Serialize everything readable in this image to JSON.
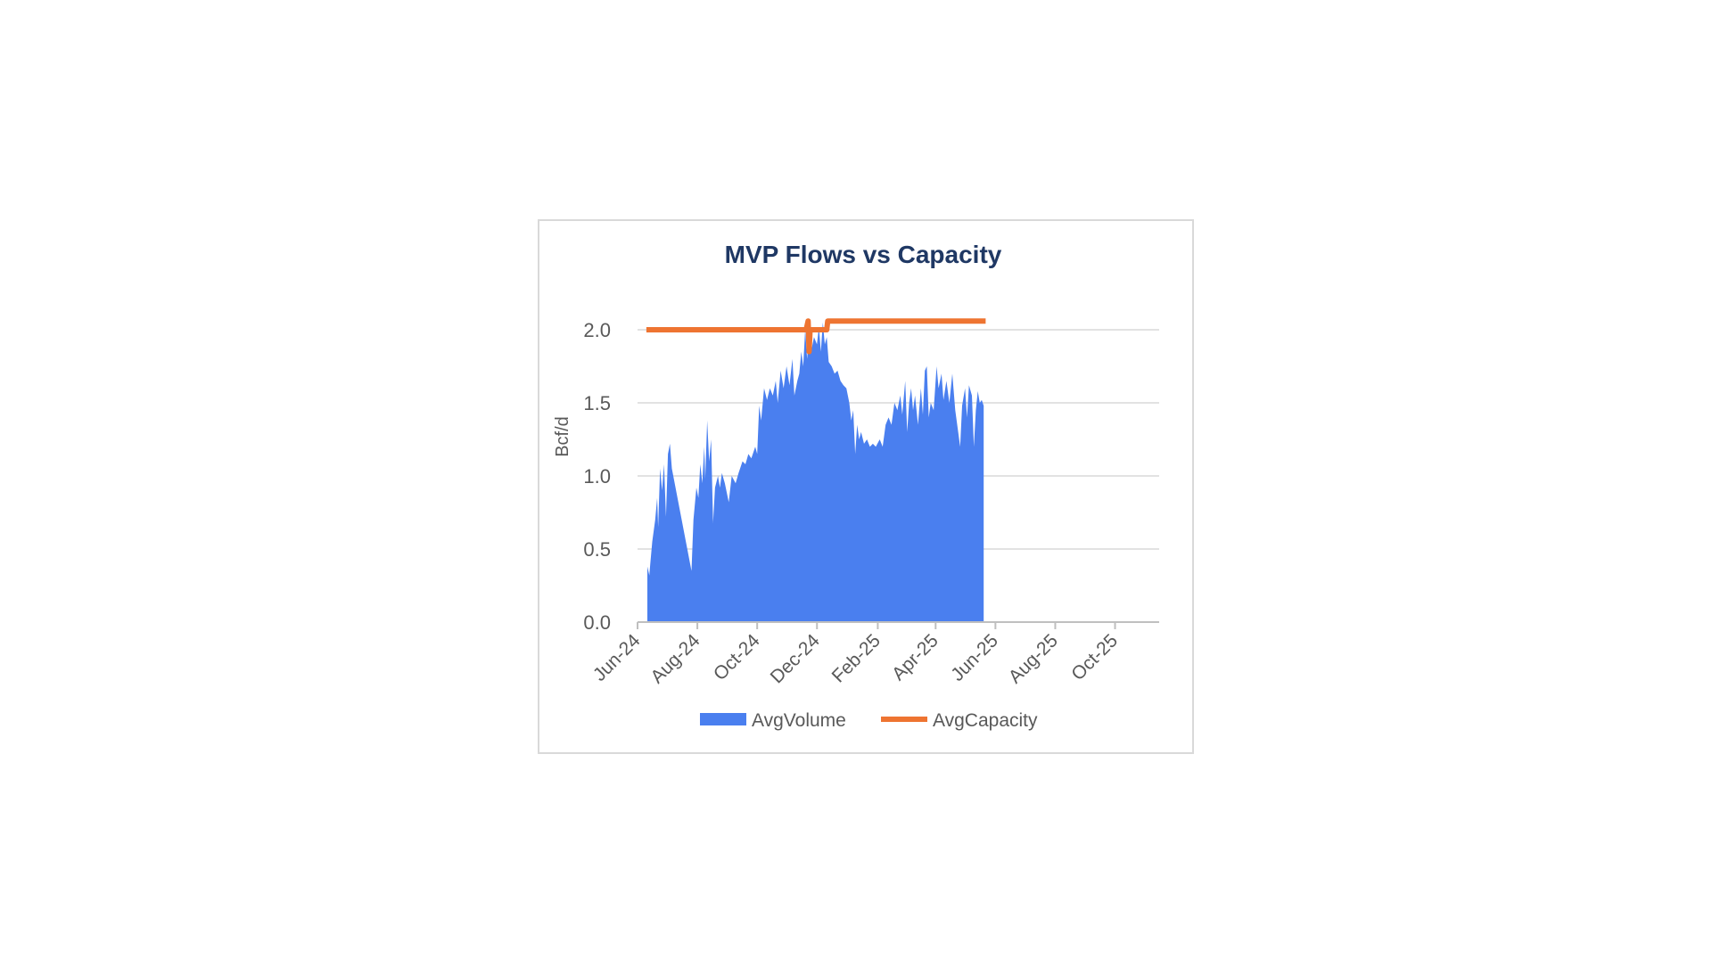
{
  "chart_data": {
    "type": "area",
    "title": "MVP Flows vs Capacity",
    "ylabel": "Bcf/d",
    "xlabel": "",
    "ylim": [
      0,
      2.0
    ],
    "yticks": [
      "0.0",
      "0.5",
      "1.0",
      "1.5",
      "2.0"
    ],
    "yticks_values": [
      0,
      0.5,
      1.0,
      1.5,
      2.0
    ],
    "xlim": [
      "2024-06-01",
      "2025-11-15"
    ],
    "xticks": [
      {
        "date": "2024-06-01",
        "label": "Jun-24"
      },
      {
        "date": "2024-08-01",
        "label": "Aug-24"
      },
      {
        "date": "2024-10-01",
        "label": "Oct-24"
      },
      {
        "date": "2024-12-01",
        "label": "Dec-24"
      },
      {
        "date": "2025-02-01",
        "label": "Feb-25"
      },
      {
        "date": "2025-04-01",
        "label": "Apr-25"
      },
      {
        "date": "2025-06-01",
        "label": "Jun-25"
      },
      {
        "date": "2025-08-01",
        "label": "Aug-25"
      },
      {
        "date": "2025-10-01",
        "label": "Oct-25"
      }
    ],
    "grid": "horizontal",
    "legend_position": "bottom",
    "series": [
      {
        "name": "AvgVolume",
        "type": "area",
        "color": "#4A7FEF",
        "points": [
          [
            "2024-06-11",
            0.0
          ],
          [
            "2024-06-11",
            0.38
          ],
          [
            "2024-06-13",
            0.32
          ],
          [
            "2024-06-14",
            0.4
          ],
          [
            "2024-06-16",
            0.55
          ],
          [
            "2024-06-19",
            0.7
          ],
          [
            "2024-06-21",
            0.85
          ],
          [
            "2024-06-22",
            0.65
          ],
          [
            "2024-06-24",
            1.05
          ],
          [
            "2024-06-26",
            0.9
          ],
          [
            "2024-06-28",
            1.08
          ],
          [
            "2024-06-30",
            0.72
          ],
          [
            "2024-07-02",
            1.15
          ],
          [
            "2024-07-04",
            1.22
          ],
          [
            "2024-07-06",
            1.05
          ],
          [
            "2024-07-26",
            0.35
          ],
          [
            "2024-07-28",
            0.7
          ],
          [
            "2024-07-31",
            0.92
          ],
          [
            "2024-08-02",
            0.85
          ],
          [
            "2024-08-04",
            1.08
          ],
          [
            "2024-08-06",
            0.95
          ],
          [
            "2024-08-08",
            1.2
          ],
          [
            "2024-08-09",
            0.98
          ],
          [
            "2024-08-11",
            1.38
          ],
          [
            "2024-08-13",
            1.1
          ],
          [
            "2024-08-15",
            1.25
          ],
          [
            "2024-08-17",
            0.68
          ],
          [
            "2024-08-19",
            0.92
          ],
          [
            "2024-08-22",
            1.0
          ],
          [
            "2024-08-24",
            0.92
          ],
          [
            "2024-08-26",
            1.02
          ],
          [
            "2024-08-29",
            0.95
          ],
          [
            "2024-09-02",
            0.82
          ],
          [
            "2024-09-05",
            1.0
          ],
          [
            "2024-09-09",
            0.95
          ],
          [
            "2024-09-12",
            1.02
          ],
          [
            "2024-09-16",
            1.1
          ],
          [
            "2024-09-19",
            1.08
          ],
          [
            "2024-09-22",
            1.15
          ],
          [
            "2024-09-25",
            1.12
          ],
          [
            "2024-09-29",
            1.2
          ],
          [
            "2024-10-01",
            1.15
          ],
          [
            "2024-10-03",
            1.48
          ],
          [
            "2024-10-05",
            1.38
          ],
          [
            "2024-10-08",
            1.6
          ],
          [
            "2024-10-11",
            1.52
          ],
          [
            "2024-10-14",
            1.6
          ],
          [
            "2024-10-17",
            1.55
          ],
          [
            "2024-10-20",
            1.65
          ],
          [
            "2024-10-22",
            1.5
          ],
          [
            "2024-10-25",
            1.72
          ],
          [
            "2024-10-28",
            1.6
          ],
          [
            "2024-10-31",
            1.75
          ],
          [
            "2024-11-03",
            1.62
          ],
          [
            "2024-11-06",
            1.8
          ],
          [
            "2024-11-08",
            1.55
          ],
          [
            "2024-11-11",
            1.65
          ],
          [
            "2024-11-13",
            1.7
          ],
          [
            "2024-11-15",
            1.85
          ],
          [
            "2024-11-17",
            1.75
          ],
          [
            "2024-11-19",
            2.0
          ],
          [
            "2024-11-21",
            1.8
          ],
          [
            "2024-11-23",
            2.0
          ],
          [
            "2024-11-25",
            1.85
          ],
          [
            "2024-11-28",
            1.95
          ],
          [
            "2024-12-01",
            1.9
          ],
          [
            "2024-12-03",
            2.02
          ],
          [
            "2024-12-05",
            1.85
          ],
          [
            "2024-12-07",
            2.05
          ],
          [
            "2024-12-09",
            1.9
          ],
          [
            "2024-12-11",
            1.95
          ],
          [
            "2024-12-13",
            1.78
          ],
          [
            "2024-12-16",
            1.75
          ],
          [
            "2024-12-19",
            1.7
          ],
          [
            "2024-12-22",
            1.72
          ],
          [
            "2024-12-25",
            1.65
          ],
          [
            "2024-12-28",
            1.62
          ],
          [
            "2024-12-31",
            1.6
          ],
          [
            "2025-01-03",
            1.5
          ],
          [
            "2025-01-05",
            1.38
          ],
          [
            "2025-01-07",
            1.45
          ],
          [
            "2025-01-09",
            1.15
          ],
          [
            "2025-01-11",
            1.35
          ],
          [
            "2025-01-13",
            1.25
          ],
          [
            "2025-01-15",
            1.3
          ],
          [
            "2025-01-18",
            1.22
          ],
          [
            "2025-01-21",
            1.25
          ],
          [
            "2025-01-24",
            1.2
          ],
          [
            "2025-01-27",
            1.22
          ],
          [
            "2025-01-30",
            1.2
          ],
          [
            "2025-02-03",
            1.25
          ],
          [
            "2025-02-06",
            1.2
          ],
          [
            "2025-02-09",
            1.35
          ],
          [
            "2025-02-12",
            1.4
          ],
          [
            "2025-02-15",
            1.35
          ],
          [
            "2025-02-18",
            1.5
          ],
          [
            "2025-02-21",
            1.45
          ],
          [
            "2025-02-24",
            1.55
          ],
          [
            "2025-02-26",
            1.42
          ],
          [
            "2025-03-01",
            1.65
          ],
          [
            "2025-03-03",
            1.3
          ],
          [
            "2025-03-05",
            1.5
          ],
          [
            "2025-03-07",
            1.6
          ],
          [
            "2025-03-09",
            1.45
          ],
          [
            "2025-03-11",
            1.55
          ],
          [
            "2025-03-14",
            1.35
          ],
          [
            "2025-03-17",
            1.6
          ],
          [
            "2025-03-19",
            1.42
          ],
          [
            "2025-03-21",
            1.72
          ],
          [
            "2025-03-23",
            1.75
          ],
          [
            "2025-03-25",
            1.4
          ],
          [
            "2025-03-27",
            1.5
          ],
          [
            "2025-03-30",
            1.45
          ],
          [
            "2025-04-02",
            1.75
          ],
          [
            "2025-04-04",
            1.6
          ],
          [
            "2025-04-07",
            1.7
          ],
          [
            "2025-04-09",
            1.52
          ],
          [
            "2025-04-12",
            1.65
          ],
          [
            "2025-04-15",
            1.5
          ],
          [
            "2025-04-18",
            1.7
          ],
          [
            "2025-04-21",
            1.45
          ],
          [
            "2025-04-24",
            1.3
          ],
          [
            "2025-04-26",
            1.2
          ],
          [
            "2025-04-28",
            1.48
          ],
          [
            "2025-05-01",
            1.6
          ],
          [
            "2025-05-03",
            1.4
          ],
          [
            "2025-05-05",
            1.62
          ],
          [
            "2025-05-08",
            1.55
          ],
          [
            "2025-05-10",
            1.2
          ],
          [
            "2025-05-12",
            1.45
          ],
          [
            "2025-05-14",
            1.58
          ],
          [
            "2025-05-16",
            1.5
          ],
          [
            "2025-05-18",
            1.52
          ],
          [
            "2025-05-20",
            1.48
          ],
          [
            "2025-05-20",
            0.0
          ]
        ]
      },
      {
        "name": "AvgCapacity",
        "type": "line",
        "color": "#EE7431",
        "points": [
          [
            "2024-06-10",
            2.0
          ],
          [
            "2024-11-20",
            2.0
          ],
          [
            "2024-11-22",
            2.06
          ],
          [
            "2024-11-23",
            1.85
          ],
          [
            "2024-11-24",
            2.0
          ],
          [
            "2024-12-11",
            2.0
          ],
          [
            "2024-12-12",
            2.06
          ],
          [
            "2025-05-22",
            2.06
          ]
        ]
      }
    ]
  }
}
